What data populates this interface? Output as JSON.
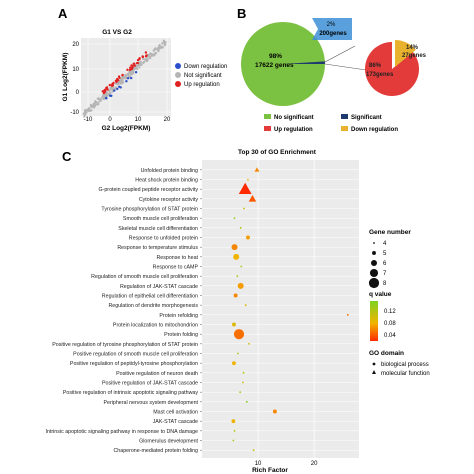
{
  "panels": {
    "a": "A",
    "b": "B",
    "c": "C"
  },
  "colors": {
    "down": "#2a4fc8",
    "notsig": "#b5b5b5",
    "up": "#e02020",
    "pie_green": "#7cc242",
    "pie_red": "#e33a3a",
    "pie_gold": "#e9b22e",
    "box_blue": "#3d8fd6",
    "sig_navy": "#1f3a6e",
    "heat_top": "#7ed321",
    "heat_bottom": "#ff2a00"
  },
  "panel_a": {
    "title": "G1 VS G2",
    "ylabel": "G1 Log2(FPKM)",
    "xlabel": "G2 Log2(FPKM)",
    "xticks": [
      "-10",
      "0",
      "10",
      "20"
    ],
    "yticks": [
      "20",
      "10",
      "0",
      "-10"
    ],
    "legend": [
      "Down regulation",
      "Not significant",
      "Up regulation"
    ]
  },
  "panel_b": {
    "big_slice_pct": "98%",
    "big_slice_genes": "17622 genes",
    "small_box_pct": "2%",
    "small_box_genes": "200genes",
    "red_slice_pct": "86%",
    "red_slice_genes": "173genes",
    "gold_slice_pct": "14%",
    "gold_slice_genes": "27genes",
    "legend": [
      "No significant",
      "Significant",
      "Up regulation",
      "Down regulation"
    ]
  },
  "chart_data": {
    "type": "scatter",
    "title": "Top 30 of GO Enrichment",
    "xlabel": "Rich Factor",
    "ylabel": "",
    "xlim": [
      0,
      28
    ],
    "xticks": [
      "10",
      "20"
    ],
    "gene_number_title": "Gene number",
    "gene_number_sizes": [
      "4",
      "5",
      "6",
      "7",
      "8"
    ],
    "qvalue_title": "q value",
    "qvalue_ticks": [
      "0.12",
      "0.08",
      "0.04"
    ],
    "domain_title": "GO domain",
    "domains": [
      "biological process",
      "molecular function"
    ],
    "terms": [
      {
        "label": "Unfolded protein binding",
        "x": 9.8,
        "size": 5,
        "q": 0.04,
        "shape": "triangle"
      },
      {
        "label": "Heat shock protein binding",
        "x": 8.2,
        "size": 4,
        "q": 0.06,
        "shape": "triangle"
      },
      {
        "label": "G-protein coupled peptide receptor activity",
        "x": 7.7,
        "size": 8,
        "q": 0.0,
        "shape": "triangle"
      },
      {
        "label": "Cytokine receptor activity",
        "x": 9.0,
        "size": 6,
        "q": 0.02,
        "shape": "triangle"
      },
      {
        "label": "Tyrosine phosphorylation of STAT protein",
        "x": 7.5,
        "size": 4,
        "q": 0.08,
        "shape": "circle"
      },
      {
        "label": "Smooth muscle cell proliferation",
        "x": 5.8,
        "size": 4,
        "q": 0.11,
        "shape": "circle"
      },
      {
        "label": "Skeletal muscle cell differentiation",
        "x": 6.9,
        "size": 4,
        "q": 0.09,
        "shape": "circle"
      },
      {
        "label": "Response to unfolded protein",
        "x": 8.2,
        "size": 5,
        "q": 0.05,
        "shape": "circle"
      },
      {
        "label": "Response to temperature stimulus",
        "x": 5.8,
        "size": 6,
        "q": 0.04,
        "shape": "circle"
      },
      {
        "label": "Response to heat",
        "x": 6.1,
        "size": 6,
        "q": 0.06,
        "shape": "circle"
      },
      {
        "label": "Response to cAMP",
        "x": 7.0,
        "size": 4,
        "q": 0.1,
        "shape": "circle"
      },
      {
        "label": "Regulation of smooth muscle cell proliferation",
        "x": 6.3,
        "size": 4,
        "q": 0.1,
        "shape": "circle"
      },
      {
        "label": "Regulation of JAK-STAT cascade",
        "x": 6.9,
        "size": 6,
        "q": 0.05,
        "shape": "circle"
      },
      {
        "label": "Regulation of epithelial cell differentiation",
        "x": 6.0,
        "size": 5,
        "q": 0.04,
        "shape": "circle"
      },
      {
        "label": "Regulation of dendrite morphogenesis",
        "x": 7.8,
        "size": 4,
        "q": 0.07,
        "shape": "circle"
      },
      {
        "label": "Protein refolding",
        "x": 26.0,
        "size": 4,
        "q": 0.03,
        "shape": "circle"
      },
      {
        "label": "Protein localization to mitochondrion",
        "x": 5.7,
        "size": 5,
        "q": 0.07,
        "shape": "circle"
      },
      {
        "label": "Protein folding",
        "x": 6.6,
        "size": 8,
        "q": 0.03,
        "shape": "circle"
      },
      {
        "label": "Positive regulation of tyrosine phosphorylation of STAT protein",
        "x": 8.4,
        "size": 4,
        "q": 0.08,
        "shape": "circle"
      },
      {
        "label": "Positive regulation of smooth muscle cell proliferation",
        "x": 6.4,
        "size": 4,
        "q": 0.1,
        "shape": "circle"
      },
      {
        "label": "Positive regulation of peptidyl-tyrosine phosphorylation",
        "x": 5.7,
        "size": 5,
        "q": 0.06,
        "shape": "circle"
      },
      {
        "label": "Positive regulation of neuron death",
        "x": 7.4,
        "size": 4,
        "q": 0.09,
        "shape": "circle"
      },
      {
        "label": "Positive regulation of JAK-STAT cascade",
        "x": 7.3,
        "size": 4,
        "q": 0.08,
        "shape": "circle"
      },
      {
        "label": "Positive regulation of intrinsic apoptotic signaling pathway",
        "x": 6.8,
        "size": 4,
        "q": 0.09,
        "shape": "circle"
      },
      {
        "label": "Peripheral nervous system development",
        "x": 8.0,
        "size": 4,
        "q": 0.12,
        "shape": "circle"
      },
      {
        "label": "Mast cell activation",
        "x": 13.0,
        "size": 5,
        "q": 0.04,
        "shape": "circle"
      },
      {
        "label": "JAK-STAT cascade",
        "x": 5.6,
        "size": 5,
        "q": 0.06,
        "shape": "circle"
      },
      {
        "label": "Intrinsic apoptotic signaling pathway in response to DNA damage",
        "x": 5.8,
        "size": 4,
        "q": 0.09,
        "shape": "circle"
      },
      {
        "label": "Glomerulus development",
        "x": 5.6,
        "size": 4,
        "q": 0.1,
        "shape": "circle"
      },
      {
        "label": "Chaperone-mediated protein folding",
        "x": 9.2,
        "size": 4,
        "q": 0.08,
        "shape": "circle"
      }
    ]
  }
}
